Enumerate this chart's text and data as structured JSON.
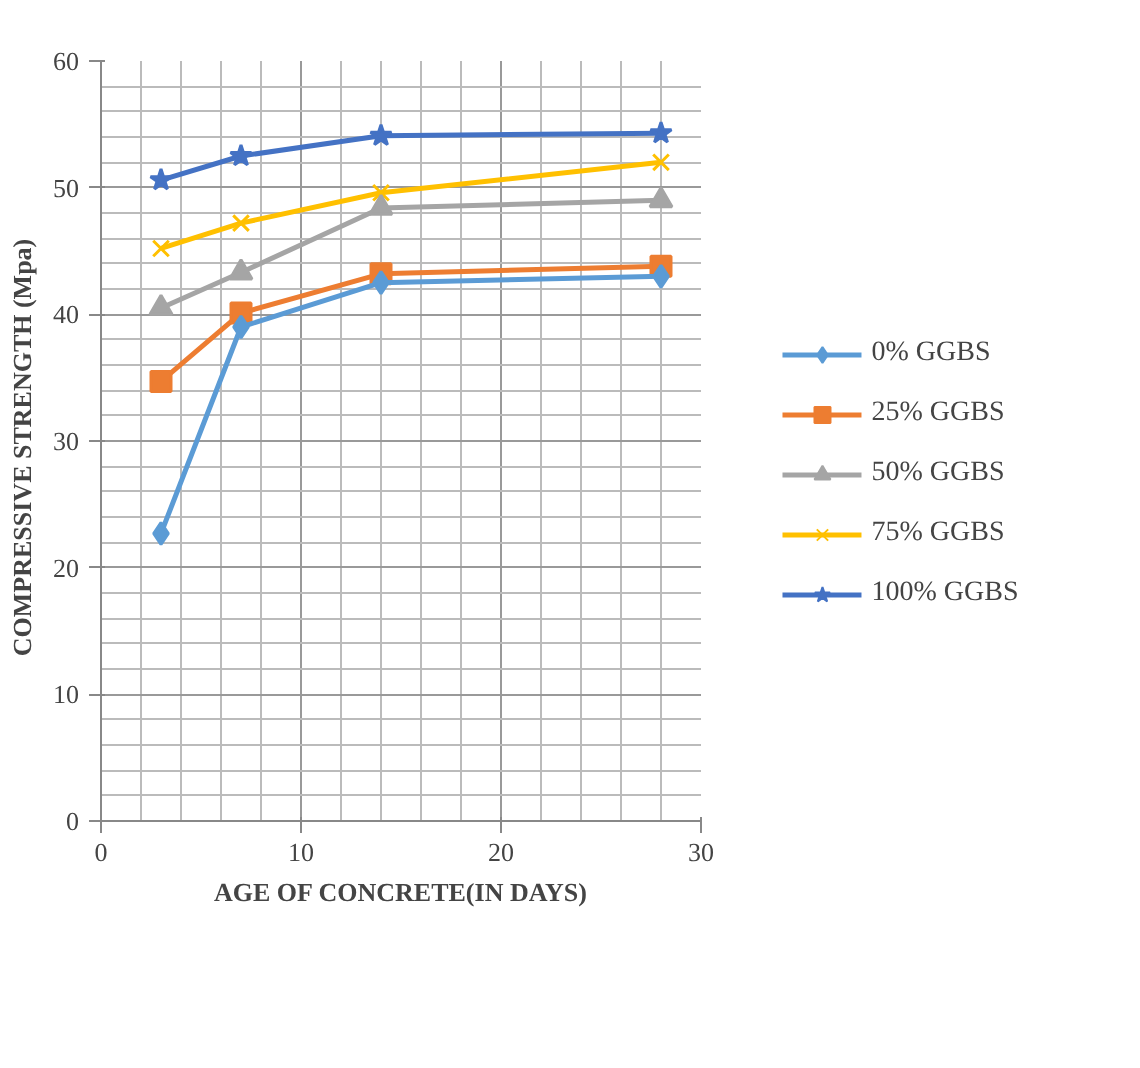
{
  "chart_data": {
    "type": "line",
    "xlabel": "AGE OF CONCRETE(IN DAYS)",
    "ylabel": "COMPRESSIVE  STRENGTH  (Mpa)",
    "x": [
      3,
      7,
      14,
      28
    ],
    "xlim": [
      0,
      30
    ],
    "xticks": [
      0,
      10,
      20,
      30
    ],
    "ylim": [
      0,
      60
    ],
    "yticks": [
      0,
      10,
      20,
      30,
      40,
      50,
      60
    ],
    "grid": true,
    "legend": "right",
    "series": [
      {
        "name": "0% GGBS",
        "color": "#5b9bd5",
        "marker": "diamond",
        "values": [
          22.7,
          39,
          42.5,
          43
        ]
      },
      {
        "name": "25% GGBS",
        "color": "#ed7d31",
        "marker": "square",
        "values": [
          34.7,
          40.1,
          43.2,
          43.8
        ]
      },
      {
        "name": "50% GGBS",
        "color": "#a5a5a5",
        "marker": "triangle",
        "values": [
          40.5,
          43.3,
          48.4,
          49
        ]
      },
      {
        "name": "75% GGBS",
        "color": "#ffc000",
        "marker": "cross",
        "values": [
          45.2,
          47.2,
          49.6,
          52
        ]
      },
      {
        "name": "100% GGBS",
        "color": "#4472c4",
        "marker": "star",
        "values": [
          50.6,
          52.5,
          54.1,
          54.3
        ]
      }
    ]
  }
}
